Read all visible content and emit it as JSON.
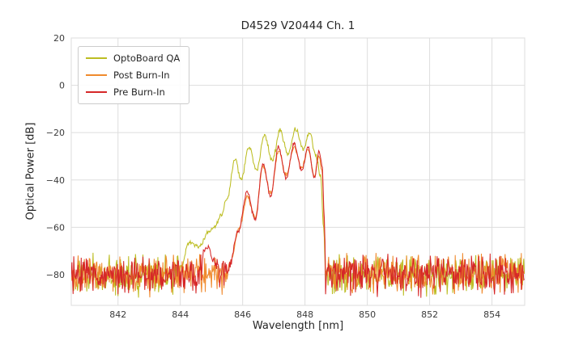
{
  "chart_data": {
    "type": "line",
    "title": "D4529 V20444 Ch. 1",
    "xlabel": "Wavelength [nm]",
    "ylabel": "Optical Power [dB]",
    "xlim": [
      840.5,
      855.05
    ],
    "ylim": [
      -93,
      20
    ],
    "xticks": [
      842,
      844,
      846,
      848,
      850,
      852,
      854
    ],
    "yticks": [
      20,
      0,
      -20,
      -40,
      -60,
      -80
    ],
    "grid": true,
    "grid_color": "#dddddd",
    "frame_color": "#dddddd",
    "legend_position": "upper-left",
    "noise_floor": {
      "center_db": -80,
      "half_range_db": 10,
      "step_nm": 0.02
    },
    "series": [
      {
        "name": "OptoBoard QA",
        "color": "#bcbd22",
        "seed": 7,
        "envelope": [
          [
            840.5,
            -100
          ],
          [
            843.7,
            -100
          ],
          [
            844.0,
            -78
          ],
          [
            844.3,
            -66
          ],
          [
            844.6,
            -68
          ],
          [
            844.9,
            -62
          ],
          [
            845.1,
            -60
          ],
          [
            845.3,
            -55
          ],
          [
            845.5,
            -48
          ],
          [
            845.75,
            -31
          ],
          [
            845.95,
            -40
          ],
          [
            846.2,
            -26
          ],
          [
            846.45,
            -36
          ],
          [
            846.7,
            -21
          ],
          [
            846.95,
            -32
          ],
          [
            847.2,
            -19
          ],
          [
            847.45,
            -29
          ],
          [
            847.7,
            -18.5
          ],
          [
            847.95,
            -27
          ],
          [
            848.15,
            -20
          ],
          [
            848.35,
            -30
          ],
          [
            848.5,
            -38
          ],
          [
            848.6,
            -60
          ],
          [
            848.7,
            -100
          ],
          [
            855.05,
            -100
          ]
        ]
      },
      {
        "name": "Post Burn-In",
        "color": "#f08a2d",
        "seed": 13,
        "envelope": [
          [
            840.5,
            -100
          ],
          [
            845.3,
            -100
          ],
          [
            845.6,
            -75
          ],
          [
            845.9,
            -60
          ],
          [
            846.15,
            -47
          ],
          [
            846.4,
            -56
          ],
          [
            846.65,
            -34
          ],
          [
            846.9,
            -46
          ],
          [
            847.15,
            -28
          ],
          [
            847.4,
            -38
          ],
          [
            847.65,
            -26
          ],
          [
            847.9,
            -35
          ],
          [
            848.1,
            -27
          ],
          [
            848.3,
            -38
          ],
          [
            848.45,
            -30
          ],
          [
            848.55,
            -36
          ],
          [
            848.62,
            -60
          ],
          [
            848.7,
            -100
          ],
          [
            855.05,
            -100
          ]
        ]
      },
      {
        "name": "Pre Burn-In",
        "color": "#d62728",
        "seed": 21,
        "envelope": [
          [
            840.5,
            -100
          ],
          [
            844.6,
            -100
          ],
          [
            844.75,
            -70
          ],
          [
            844.9,
            -68
          ],
          [
            845.05,
            -74
          ],
          [
            845.4,
            -100
          ],
          [
            845.55,
            -78
          ],
          [
            845.85,
            -62
          ],
          [
            846.15,
            -45
          ],
          [
            846.4,
            -57
          ],
          [
            846.65,
            -33
          ],
          [
            846.9,
            -47
          ],
          [
            847.15,
            -26
          ],
          [
            847.4,
            -39
          ],
          [
            847.65,
            -24.5
          ],
          [
            847.9,
            -36
          ],
          [
            848.1,
            -26
          ],
          [
            848.3,
            -39
          ],
          [
            848.45,
            -28
          ],
          [
            848.55,
            -34
          ],
          [
            848.62,
            -55
          ],
          [
            848.68,
            -100
          ],
          [
            855.05,
            -100
          ]
        ]
      }
    ]
  }
}
